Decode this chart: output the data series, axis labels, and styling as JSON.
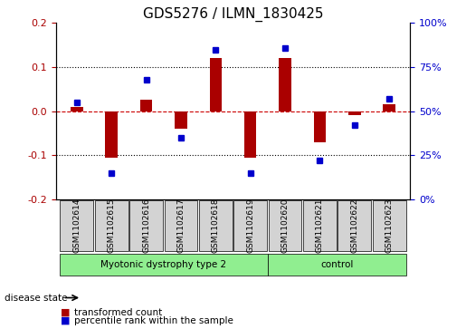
{
  "title": "GDS5276 / ILMN_1830425",
  "samples": [
    "GSM1102614",
    "GSM1102615",
    "GSM1102616",
    "GSM1102617",
    "GSM1102618",
    "GSM1102619",
    "GSM1102620",
    "GSM1102621",
    "GSM1102622",
    "GSM1102623"
  ],
  "transformed_count": [
    0.01,
    -0.105,
    0.025,
    -0.04,
    0.12,
    -0.105,
    0.12,
    -0.07,
    -0.01,
    0.015
  ],
  "percentile_rank": [
    55,
    15,
    68,
    35,
    85,
    15,
    86,
    22,
    42,
    57
  ],
  "groups": [
    {
      "label": "Myotonic dystrophy type 2",
      "start": 0,
      "end": 6,
      "color": "#90EE90"
    },
    {
      "label": "control",
      "start": 6,
      "end": 10,
      "color": "#90EE90"
    }
  ],
  "ylim_left": [
    -0.2,
    0.2
  ],
  "ylim_right": [
    0,
    100
  ],
  "yticks_left": [
    -0.2,
    -0.1,
    0.0,
    0.1,
    0.2
  ],
  "yticks_right": [
    0,
    25,
    50,
    75,
    100
  ],
  "bar_color": "#AA0000",
  "dot_color": "#0000CC",
  "zero_line_color": "#CC0000",
  "grid_color": "#000000",
  "bg_color": "#FFFFFF",
  "plot_bg": "#FFFFFF",
  "label_box_color": "#D3D3D3",
  "disease_state_arrow": "disease state",
  "legend_items": [
    "transformed count",
    "percentile rank within the sample"
  ]
}
